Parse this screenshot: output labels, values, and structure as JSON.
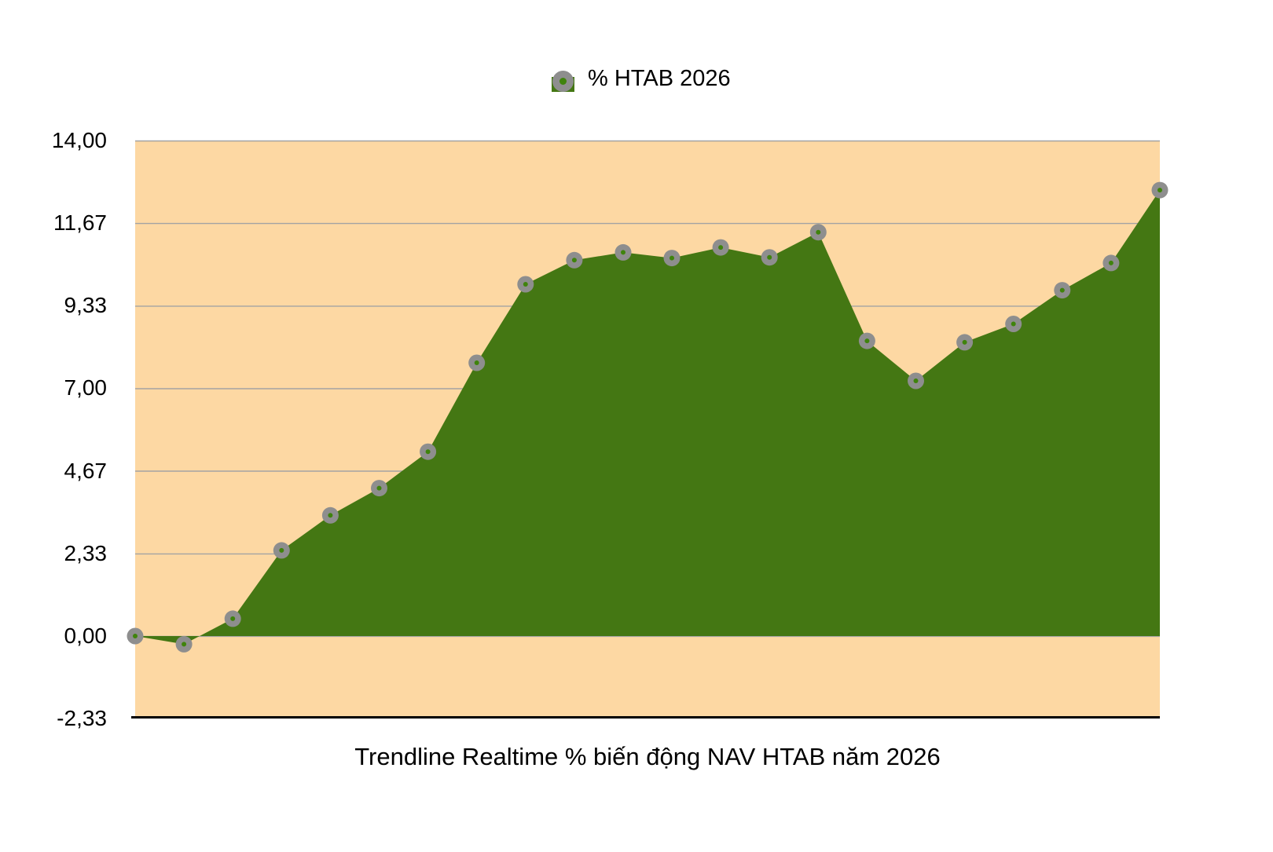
{
  "legend": {
    "label": "% HTAB 2026"
  },
  "title": {
    "text": "Trendline Realtime % biến động NAV HTAB năm 2026"
  },
  "chart_data": {
    "type": "area",
    "title": "Trendline Realtime % biến động NAV HTAB năm 2026",
    "legend_position": "top-center",
    "x_labels_shown": false,
    "point_count": 22,
    "series": [
      {
        "name": "% HTAB 2026",
        "values": [
          0.0,
          -0.23,
          0.49,
          2.42,
          3.41,
          4.18,
          5.21,
          7.72,
          9.94,
          10.62,
          10.84,
          10.68,
          10.98,
          10.7,
          11.41,
          8.34,
          7.21,
          8.3,
          8.82,
          9.77,
          10.54,
          12.6
        ]
      }
    ],
    "ylim": [
      -2.33,
      14.0
    ],
    "baseline": 0,
    "grid": true,
    "yticks": [
      {
        "value": 14.0,
        "label": "14,00"
      },
      {
        "value": 11.67,
        "label": "11,67"
      },
      {
        "value": 9.33,
        "label": "9,33"
      },
      {
        "value": 7.0,
        "label": "7,00"
      },
      {
        "value": 4.67,
        "label": "4,67"
      },
      {
        "value": 2.33,
        "label": "2,33"
      },
      {
        "value": 0.0,
        "label": "0,00"
      },
      {
        "value": -2.33,
        "label": "-2,33"
      }
    ],
    "marker": "circle"
  },
  "colors": {
    "page_background": "#FFFFFF",
    "plot_background": "#FDD8A3",
    "area_fill": "#447713",
    "gridline": "#A3A3A3",
    "axis_line": "#000000",
    "marker_outer": "#8E8E8E",
    "marker_inner": "#3F830C",
    "text": "#000000"
  }
}
